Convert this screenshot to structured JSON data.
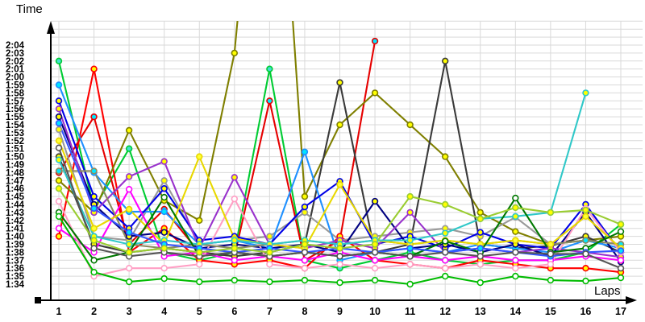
{
  "chart_data": {
    "type": "line",
    "title": "",
    "ylabel": "Time",
    "xlabel": "Laps",
    "grid": true,
    "legend": "none",
    "background": "#ffffff",
    "grid_color": "#d9d9d9",
    "axis_color": "#000000",
    "tick_font_color": "#000000",
    "x": [
      1,
      2,
      3,
      4,
      5,
      6,
      7,
      8,
      9,
      10,
      11,
      12,
      13,
      14,
      15,
      16,
      17
    ],
    "x_tick_labels": [
      "1",
      "2",
      "3",
      "4",
      "5",
      "6",
      "7",
      "8",
      "9",
      "10",
      "11",
      "12",
      "13",
      "14",
      "15",
      "16",
      "17"
    ],
    "y_tick_labels": [
      "1:34",
      "1:35",
      "1:36",
      "1:37",
      "1:38",
      "1:39",
      "1:40",
      "1:41",
      "1:42",
      "1:43",
      "1:44",
      "1:45",
      "1:46",
      "1:47",
      "1:48",
      "1:49",
      "1:50",
      "1:51",
      "1:52",
      "1:53",
      "1:54",
      "1:55",
      "1:56",
      "1:57",
      "1:58",
      "1:59",
      "2:00",
      "2:01",
      "2:02",
      "2:03",
      "2:04"
    ],
    "y_tick_seconds_start": 94,
    "ylim_seconds": [
      94,
      124
    ],
    "note": "lap times in seconds; 94 = 1:34, 124 = 2:04; null = series ended; values above 124 run off the top of the plot",
    "series": [
      {
        "id": "bright-green",
        "color": "#00cc33",
        "marker_fill": "#40e0d0",
        "laps": [
          122,
          103.5,
          111,
          98,
          97,
          98,
          121,
          97,
          96,
          97,
          98,
          97,
          96.5,
          97,
          97,
          98,
          101.5
        ]
      },
      {
        "id": "red",
        "color": "#ff0000",
        "marker_fill": "#ffff00",
        "laps": [
          100,
          121,
          98,
          101,
          97,
          96.5,
          97,
          96,
          100,
          97,
          96.5,
          96,
          97,
          96.5,
          96,
          96,
          95.5
        ]
      },
      {
        "id": "red-cyan",
        "color": "#e60000",
        "marker_fill": "#00e5ff",
        "laps": [
          108,
          115,
          99,
          103.4,
          98,
          97.5,
          117,
          97,
          99.5,
          124.5,
          null,
          null,
          null,
          null,
          null,
          null,
          null
        ]
      },
      {
        "id": "olive",
        "color": "#7f7f00",
        "marker_fill": "#ffff00",
        "laps": [
          107,
          103,
          113.3,
          104.5,
          102,
          123,
          170,
          105,
          114,
          118,
          114,
          110,
          103,
          100.6,
          99,
          99.5,
          100
        ]
      },
      {
        "id": "black",
        "color": "#3a3a3a",
        "marker_fill": "#ffff00",
        "laps": [
          110,
          99,
          98,
          98.5,
          98,
          97.5,
          98,
          99,
          119.3,
          98,
          99,
          122,
          99,
          98.5,
          98.8,
          100,
          98
        ]
      },
      {
        "id": "gray",
        "color": "#999999",
        "marker_fill": "#ffff00",
        "laps": [
          113.4,
          100,
          99.5,
          107,
          99,
          99.5,
          100,
          103,
          99.5,
          100,
          100.5,
          101,
          100,
          102.4,
          99,
          99.5,
          99
        ]
      },
      {
        "id": "dodger-blue",
        "color": "#1e90ff",
        "marker_fill": "#00e5ff",
        "laps": [
          119,
          108,
          103.1,
          103.1,
          99,
          99.5,
          98.5,
          110.6,
          97,
          98,
          98.5,
          98,
          99,
          98.5,
          98,
          99.5,
          98.5
        ]
      },
      {
        "id": "blue",
        "color": "#0000e6",
        "marker_fill": "#ffff00",
        "laps": [
          117,
          105,
          101,
          106,
          99.5,
          100,
          99,
          103.7,
          106.9,
          99,
          100,
          98.5,
          100.5,
          99,
          98.5,
          104,
          98
        ]
      },
      {
        "id": "navy",
        "color": "#000080",
        "marker_fill": "#ffff00",
        "laps": [
          115,
          104,
          100,
          100.5,
          98.5,
          99,
          98.5,
          99,
          98,
          104.4,
          98.5,
          99,
          98,
          99,
          97.5,
          103,
          96.8
        ]
      },
      {
        "id": "purple",
        "color": "#9932cc",
        "marker_fill": "#ffff00",
        "laps": [
          116,
          103,
          107.5,
          109.4,
          98.5,
          107.4,
          99,
          98.5,
          99.5,
          98.5,
          103,
          98,
          98.5,
          98,
          98.5,
          98,
          97.4
        ]
      },
      {
        "id": "magenta",
        "color": "#ff00ff",
        "marker_fill": "#ffffff",
        "laps": [
          101,
          98,
          105.9,
          97.5,
          98,
          97,
          97.5,
          97,
          98,
          97,
          97.5,
          97,
          97.5,
          97,
          97,
          97.5,
          97
        ]
      },
      {
        "id": "pink",
        "color": "#ff9ec4",
        "marker_fill": "#ffffff",
        "laps": [
          104.4,
          95,
          96,
          96,
          96.5,
          104.7,
          96.5,
          96,
          96.5,
          96,
          96.5,
          96,
          96.5,
          96,
          96.5,
          103.5,
          98
        ]
      },
      {
        "id": "khaki-gray",
        "color": "#8b8b60",
        "marker_fill": "#00e5ff",
        "laps": [
          108.2,
          108.2,
          99,
          98.5,
          99,
          98.5,
          99,
          99.5,
          99,
          99.5,
          99,
          99.5,
          99,
          99.5,
          99,
          99.5,
          99
        ]
      },
      {
        "id": "yellow",
        "color": "#e8d800",
        "marker_fill": "#ffff33",
        "laps": [
          112,
          101,
          103.4,
          99,
          110,
          99.7,
          99,
          98.5,
          106.5,
          99.5,
          99,
          99.5,
          99,
          99.5,
          99,
          102.5,
          98.5
        ]
      },
      {
        "id": "turquoise",
        "color": "#30c8c8",
        "marker_fill": "#ffff00",
        "laps": [
          109.6,
          100,
          99,
          99.5,
          99,
          99.5,
          99,
          99.5,
          99,
          99.5,
          99.5,
          100.4,
          102.2,
          102.5,
          103,
          118,
          null
        ]
      },
      {
        "id": "dark-green",
        "color": "#007800",
        "marker_fill": "#ffffff",
        "laps": [
          103,
          97,
          98,
          104.9,
          97.5,
          98,
          97.5,
          98,
          97.5,
          98,
          97.5,
          99.4,
          98,
          104.8,
          98,
          98.5,
          100.6
        ]
      },
      {
        "id": "green-low",
        "color": "#00bb00",
        "marker_fill": "#ffffff",
        "laps": [
          102.5,
          95.5,
          94.3,
          94.7,
          94.3,
          94.5,
          94.3,
          94.5,
          94.2,
          94.5,
          94,
          95,
          94.2,
          95,
          94.5,
          94.4,
          94.8
        ]
      },
      {
        "id": "royal-blue",
        "color": "#3355ff",
        "marker_fill": "#00e5ff",
        "laps": [
          114.2,
          103.5,
          100.5,
          99,
          98.5,
          98,
          98.5,
          98,
          98.5,
          98,
          98.5,
          98,
          98.5,
          98,
          97.5,
          98,
          98.2
        ]
      },
      {
        "id": "dark-gray",
        "color": "#555555",
        "marker_fill": "#ffffff",
        "laps": [
          111.1,
          98.5,
          97.5,
          98,
          97.5,
          98,
          97.5,
          98,
          97.5,
          98,
          97.5,
          98,
          97.5,
          98,
          97.8,
          97.8,
          96
        ]
      },
      {
        "id": "yellow-green",
        "color": "#9acd32",
        "marker_fill": "#ffff00",
        "laps": [
          106,
          99.5,
          98,
          98.5,
          98,
          98.5,
          98,
          99,
          98.5,
          99,
          105,
          104,
          102.2,
          103.6,
          103,
          103.3,
          101.5
        ]
      }
    ]
  }
}
